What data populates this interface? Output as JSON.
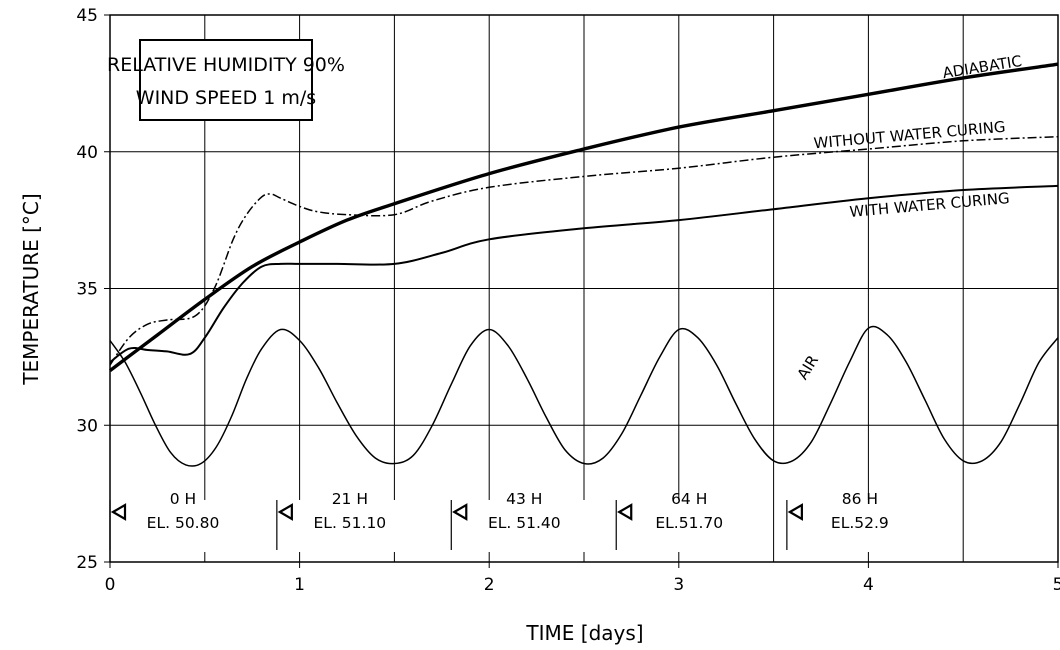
{
  "chart_data": {
    "type": "line",
    "title": "",
    "xlabel": "TIME [days]",
    "ylabel": "TEMPERATURE [°C]",
    "xlim": [
      0,
      5
    ],
    "ylim": [
      25,
      45
    ],
    "x_ticks": [
      "0",
      "1",
      "2",
      "3",
      "4",
      "5"
    ],
    "y_ticks": [
      "25",
      "30",
      "35",
      "40",
      "45"
    ],
    "grid": true,
    "info_box": [
      "RELATIVE HUMIDITY 90%",
      "WIND SPEED 1 m/s"
    ],
    "series": [
      {
        "name": "ADIABATIC",
        "style": "thick-solid",
        "x": [
          0,
          0.25,
          0.5,
          0.75,
          1.0,
          1.25,
          1.5,
          2.0,
          2.5,
          3.0,
          3.5,
          4.0,
          4.5,
          5.0
        ],
        "y": [
          32.0,
          33.3,
          34.6,
          35.8,
          36.7,
          37.5,
          38.1,
          39.2,
          40.1,
          40.9,
          41.5,
          42.1,
          42.7,
          43.2
        ]
      },
      {
        "name": "WITHOUT WATER CURING",
        "style": "dash-dot",
        "x": [
          0,
          0.1,
          0.2,
          0.3,
          0.45,
          0.55,
          0.65,
          0.72,
          0.8,
          0.85,
          0.9,
          1.0,
          1.1,
          1.25,
          1.5,
          1.7,
          2.0,
          2.5,
          3.0,
          3.5,
          4.0,
          4.5,
          5.0
        ],
        "y": [
          32.2,
          33.2,
          33.7,
          33.85,
          34.0,
          35.0,
          36.8,
          37.7,
          38.35,
          38.45,
          38.3,
          38.0,
          37.8,
          37.7,
          37.7,
          38.2,
          38.7,
          39.1,
          39.4,
          39.8,
          40.1,
          40.4,
          40.55
        ]
      },
      {
        "name": "WITH WATER CURING",
        "style": "solid",
        "x": [
          0,
          0.1,
          0.2,
          0.3,
          0.42,
          0.5,
          0.6,
          0.7,
          0.8,
          0.9,
          1.0,
          1.2,
          1.5,
          1.75,
          2.0,
          2.5,
          3.0,
          3.5,
          4.0,
          4.5,
          5.0
        ],
        "y": [
          32.3,
          32.8,
          32.75,
          32.7,
          32.6,
          33.2,
          34.3,
          35.2,
          35.8,
          35.9,
          35.9,
          35.9,
          35.9,
          36.3,
          36.8,
          37.2,
          37.5,
          37.9,
          38.3,
          38.6,
          38.75
        ]
      },
      {
        "name": "AIR",
        "style": "thin-solid",
        "x": [
          0,
          0.08,
          0.16,
          0.24,
          0.32,
          0.4,
          0.48,
          0.56,
          0.64,
          0.72,
          0.8,
          0.9,
          1.0,
          1.1,
          1.2,
          1.3,
          1.4,
          1.5,
          1.6,
          1.7,
          1.8,
          1.9,
          2.0,
          2.1,
          2.2,
          2.3,
          2.4,
          2.5,
          2.6,
          2.7,
          2.8,
          2.9,
          3.0,
          3.1,
          3.2,
          3.3,
          3.4,
          3.5,
          3.6,
          3.7,
          3.8,
          3.9,
          4.0,
          4.1,
          4.2,
          4.3,
          4.4,
          4.5,
          4.6,
          4.7,
          4.8,
          4.9,
          5.0
        ],
        "y": [
          33.1,
          32.3,
          31.2,
          30.0,
          29.0,
          28.55,
          28.6,
          29.2,
          30.3,
          31.7,
          32.8,
          33.5,
          33.1,
          32.1,
          30.8,
          29.6,
          28.8,
          28.6,
          28.9,
          30.0,
          31.5,
          32.9,
          33.5,
          32.9,
          31.7,
          30.3,
          29.1,
          28.6,
          28.8,
          29.7,
          31.1,
          32.5,
          33.5,
          33.2,
          32.2,
          30.8,
          29.5,
          28.7,
          28.7,
          29.4,
          30.8,
          32.3,
          33.55,
          33.3,
          32.3,
          30.9,
          29.5,
          28.7,
          28.7,
          29.4,
          30.8,
          32.3,
          33.2
        ]
      }
    ],
    "annotations": [
      {
        "id": "ann-0",
        "x": 0.0,
        "label1": "0 H",
        "label2": "EL. 50.80"
      },
      {
        "id": "ann-1",
        "x": 0.88,
        "label1": "21 H",
        "label2": "EL. 51.10"
      },
      {
        "id": "ann-2",
        "x": 1.8,
        "label1": "43 H",
        "label2": "EL. 51.40"
      },
      {
        "id": "ann-3",
        "x": 2.67,
        "label1": "64 H",
        "label2": "EL.51.70"
      },
      {
        "id": "ann-4",
        "x": 3.57,
        "label1": "86 H",
        "label2": "EL.52.9"
      }
    ]
  }
}
